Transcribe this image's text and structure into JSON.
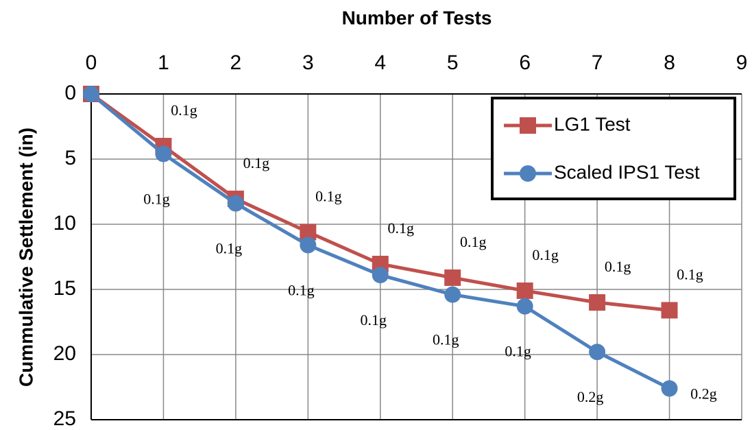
{
  "chart_data": {
    "type": "line",
    "x_label": "Number of Tests",
    "y_label": "Cummulative Settlement (in)",
    "x": [
      0,
      1,
      2,
      3,
      4,
      5,
      6,
      7,
      8
    ],
    "xlim": [
      0,
      9
    ],
    "xticks": [
      0,
      1,
      2,
      3,
      4,
      5,
      6,
      7,
      8,
      9
    ],
    "ylim": [
      0,
      25
    ],
    "yticks": [
      0,
      5,
      10,
      15,
      20,
      25
    ],
    "y_inverted": true,
    "x_axis_position": "top",
    "grid": true,
    "legend": "top-right",
    "series": [
      {
        "name": "LG1 Test",
        "color": "#c0504d",
        "marker": "square",
        "values": [
          0,
          4.0,
          8.05,
          10.6,
          13.05,
          14.1,
          15.1,
          16.0,
          16.6
        ],
        "point_labels": [
          null,
          "0.1g",
          "0.1g",
          "0.1g",
          "0.1g",
          "0.1g",
          "0.1g",
          "0.1g",
          "0.1g"
        ]
      },
      {
        "name": "Scaled IPS1 Test",
        "color": "#4f81bd",
        "marker": "circle",
        "values": [
          0,
          4.6,
          8.4,
          11.6,
          13.9,
          15.4,
          16.3,
          19.8,
          22.6
        ],
        "point_labels": [
          null,
          "0.1g",
          "0.1g",
          "0.1g",
          "0.1g",
          "0.1g",
          "0.1g",
          "0.2g",
          "0.2g"
        ]
      }
    ]
  }
}
